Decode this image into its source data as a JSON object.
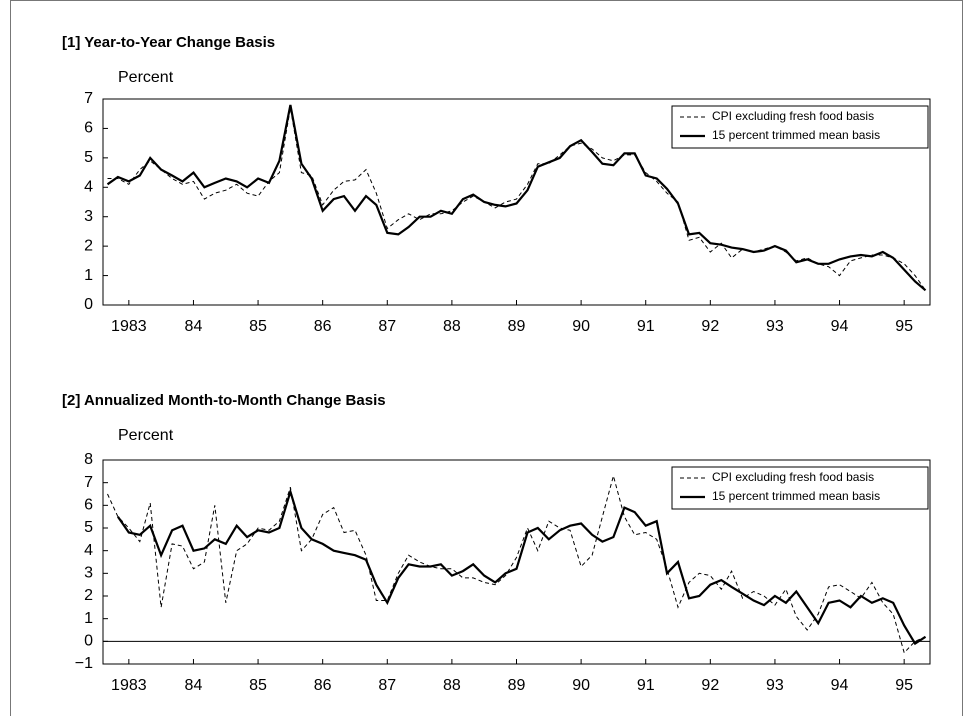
{
  "chart_data": [
    {
      "type": "line",
      "title": "[1] Year-to-Year Change Basis",
      "y_label": "Percent",
      "x": [
        1982.67,
        1982.83,
        1983,
        1983.17,
        1983.33,
        1983.5,
        1983.67,
        1983.83,
        1984,
        1984.17,
        1984.33,
        1984.5,
        1984.67,
        1984.83,
        1985,
        1985.17,
        1985.33,
        1985.5,
        1985.67,
        1985.83,
        1986,
        1986.17,
        1986.33,
        1986.5,
        1986.67,
        1986.83,
        1987,
        1987.17,
        1987.33,
        1987.5,
        1987.67,
        1987.83,
        1988,
        1988.17,
        1988.33,
        1988.5,
        1988.67,
        1988.83,
        1989,
        1989.17,
        1989.33,
        1989.5,
        1989.67,
        1989.83,
        1990,
        1990.17,
        1990.33,
        1990.5,
        1990.67,
        1990.83,
        1991,
        1991.17,
        1991.33,
        1991.5,
        1991.67,
        1991.83,
        1992,
        1992.17,
        1992.33,
        1992.5,
        1992.67,
        1992.83,
        1993,
        1993.17,
        1993.33,
        1993.5,
        1993.67,
        1993.83,
        1994,
        1994.17,
        1994.33,
        1994.5,
        1994.67,
        1994.83,
        1995,
        1995.17,
        1995.33
      ],
      "series": [
        {
          "name": "CPI excluding fresh food basis",
          "color": "#000000",
          "line_style": "dashed",
          "values": [
            4.3,
            4.3,
            4.1,
            4.6,
            4.9,
            4.6,
            4.3,
            4.1,
            4.2,
            3.6,
            3.8,
            3.9,
            4.1,
            3.8,
            3.7,
            4.2,
            4.5,
            6.7,
            4.5,
            4.4,
            3.4,
            3.9,
            4.2,
            4.25,
            4.6,
            3.8,
            2.6,
            2.9,
            3.1,
            2.9,
            3.1,
            3.1,
            3.2,
            3.5,
            3.7,
            3.5,
            3.3,
            3.5,
            3.6,
            4.1,
            4.8,
            4.8,
            5.1,
            5.4,
            5.5,
            5.3,
            5.0,
            4.9,
            5.1,
            5.1,
            4.5,
            4.2,
            3.8,
            3.5,
            2.2,
            2.3,
            1.8,
            2.1,
            1.6,
            1.9,
            1.8,
            1.9,
            2.0,
            1.8,
            1.5,
            1.6,
            1.4,
            1.3,
            1.0,
            1.5,
            1.6,
            1.7,
            1.7,
            1.6,
            1.4,
            1.0,
            0.5
          ]
        },
        {
          "name": "15 percent trimmed mean basis",
          "color": "#000000",
          "line_style": "solid",
          "values": [
            4.1,
            4.35,
            4.2,
            4.4,
            5.0,
            4.6,
            4.4,
            4.2,
            4.5,
            4.0,
            4.15,
            4.3,
            4.2,
            4.0,
            4.3,
            4.15,
            4.9,
            6.8,
            4.8,
            4.3,
            3.2,
            3.6,
            3.7,
            3.2,
            3.7,
            3.4,
            2.45,
            2.4,
            2.65,
            3.0,
            3.0,
            3.2,
            3.1,
            3.6,
            3.75,
            3.5,
            3.4,
            3.35,
            3.45,
            3.9,
            4.7,
            4.85,
            5.0,
            5.4,
            5.6,
            5.2,
            4.8,
            4.75,
            5.15,
            5.15,
            4.4,
            4.3,
            3.95,
            3.45,
            2.4,
            2.45,
            2.1,
            2.05,
            1.95,
            1.9,
            1.8,
            1.85,
            2.0,
            1.85,
            1.45,
            1.55,
            1.4,
            1.4,
            1.55,
            1.65,
            1.7,
            1.65,
            1.8,
            1.6,
            1.2,
            0.8,
            0.5
          ]
        }
      ],
      "xlim": [
        1982.6,
        1995.4
      ],
      "xticks": [
        1983,
        {
          "value": 1984,
          "label": "84"
        },
        {
          "value": 1985,
          "label": "85"
        },
        {
          "value": 1986,
          "label": "86"
        },
        {
          "value": 1987,
          "label": "87"
        },
        {
          "value": 1988,
          "label": "88"
        },
        {
          "value": 1989,
          "label": "89"
        },
        {
          "value": 1990,
          "label": "90"
        },
        {
          "value": 1991,
          "label": "91"
        },
        {
          "value": 1992,
          "label": "92"
        },
        {
          "value": 1993,
          "label": "93"
        },
        {
          "value": 1994,
          "label": "94"
        },
        {
          "value": 1995,
          "label": "95"
        }
      ],
      "ylim": [
        0,
        7
      ],
      "yticks": [
        0,
        1,
        2,
        3,
        4,
        5,
        6,
        7
      ],
      "legend": "upper right",
      "grid": false
    },
    {
      "type": "line",
      "title": "[2] Annualized Month-to-Month Change Basis",
      "y_label": "Percent",
      "x": [
        1982.67,
        1982.83,
        1983,
        1983.17,
        1983.33,
        1983.5,
        1983.67,
        1983.83,
        1984,
        1984.17,
        1984.33,
        1984.5,
        1984.67,
        1984.83,
        1985,
        1985.17,
        1985.33,
        1985.5,
        1985.67,
        1985.83,
        1986,
        1986.17,
        1986.33,
        1986.5,
        1986.67,
        1986.83,
        1987,
        1987.17,
        1987.33,
        1987.5,
        1987.67,
        1987.83,
        1988,
        1988.17,
        1988.33,
        1988.5,
        1988.67,
        1988.83,
        1989,
        1989.17,
        1989.33,
        1989.5,
        1989.67,
        1989.83,
        1990,
        1990.17,
        1990.33,
        1990.5,
        1990.67,
        1990.83,
        1991,
        1991.17,
        1991.33,
        1991.5,
        1991.67,
        1991.83,
        1992,
        1992.17,
        1992.33,
        1992.5,
        1992.67,
        1992.83,
        1993,
        1993.17,
        1993.33,
        1993.5,
        1993.67,
        1993.83,
        1994,
        1994.17,
        1994.33,
        1994.5,
        1994.67,
        1994.83,
        1995,
        1995.17,
        1995.33
      ],
      "series": [
        {
          "name": "CPI excluding fresh food basis",
          "color": "#000000",
          "line_style": "dashed",
          "values": [
            6.5,
            5.5,
            5.0,
            4.4,
            6.1,
            1.5,
            4.3,
            4.2,
            3.2,
            3.5,
            6.0,
            1.7,
            4.0,
            4.3,
            5.0,
            4.9,
            5.3,
            6.8,
            4.0,
            4.5,
            5.6,
            5.9,
            4.8,
            4.9,
            3.8,
            1.8,
            1.8,
            3.0,
            3.8,
            3.5,
            3.3,
            3.2,
            3.2,
            2.8,
            2.8,
            2.6,
            2.5,
            2.9,
            3.7,
            5.0,
            4.0,
            5.3,
            5.0,
            4.9,
            3.3,
            3.8,
            5.5,
            7.3,
            5.5,
            4.7,
            4.8,
            4.5,
            3.2,
            1.5,
            2.6,
            3.0,
            2.9,
            2.3,
            3.1,
            1.9,
            2.2,
            2.0,
            1.6,
            2.3,
            1.1,
            0.5,
            1.2,
            2.4,
            2.5,
            2.2,
            1.9,
            2.6,
            1.7,
            1.2,
            -0.5,
            0.0,
            0.2
          ]
        },
        {
          "name": "15 percent trimmed mean basis",
          "color": "#000000",
          "line_style": "solid",
          "values": [
            null,
            5.5,
            4.8,
            4.7,
            5.1,
            3.8,
            4.9,
            5.1,
            4.0,
            4.1,
            4.5,
            4.3,
            5.1,
            4.6,
            4.9,
            4.8,
            5.0,
            6.6,
            5.0,
            4.5,
            4.3,
            4.0,
            3.9,
            3.8,
            3.6,
            2.5,
            1.7,
            2.8,
            3.4,
            3.3,
            3.3,
            3.4,
            2.9,
            3.1,
            3.4,
            2.9,
            2.6,
            3.0,
            3.2,
            4.8,
            5.0,
            4.5,
            4.9,
            5.1,
            5.2,
            4.7,
            4.4,
            4.6,
            5.9,
            5.7,
            5.1,
            5.3,
            3.0,
            3.5,
            1.9,
            2.0,
            2.5,
            2.7,
            2.4,
            2.1,
            1.8,
            1.6,
            2.0,
            1.7,
            2.2,
            1.5,
            0.8,
            1.7,
            1.8,
            1.5,
            2.0,
            1.7,
            1.9,
            1.7,
            0.7,
            -0.1,
            0.2
          ]
        }
      ],
      "xlim": [
        1982.6,
        1995.4
      ],
      "xticks": [
        1983,
        {
          "value": 1984,
          "label": "84"
        },
        {
          "value": 1985,
          "label": "85"
        },
        {
          "value": 1986,
          "label": "86"
        },
        {
          "value": 1987,
          "label": "87"
        },
        {
          "value": 1988,
          "label": "88"
        },
        {
          "value": 1989,
          "label": "89"
        },
        {
          "value": 1990,
          "label": "90"
        },
        {
          "value": 1991,
          "label": "91"
        },
        {
          "value": 1992,
          "label": "92"
        },
        {
          "value": 1993,
          "label": "93"
        },
        {
          "value": 1994,
          "label": "94"
        },
        {
          "value": 1995,
          "label": "95"
        }
      ],
      "ylim": [
        -1,
        8
      ],
      "yticks": [
        {
          "value": -1,
          "label": "−1"
        },
        0,
        1,
        2,
        3,
        4,
        5,
        6,
        7,
        8
      ],
      "legend": "upper right",
      "grid": false
    }
  ]
}
